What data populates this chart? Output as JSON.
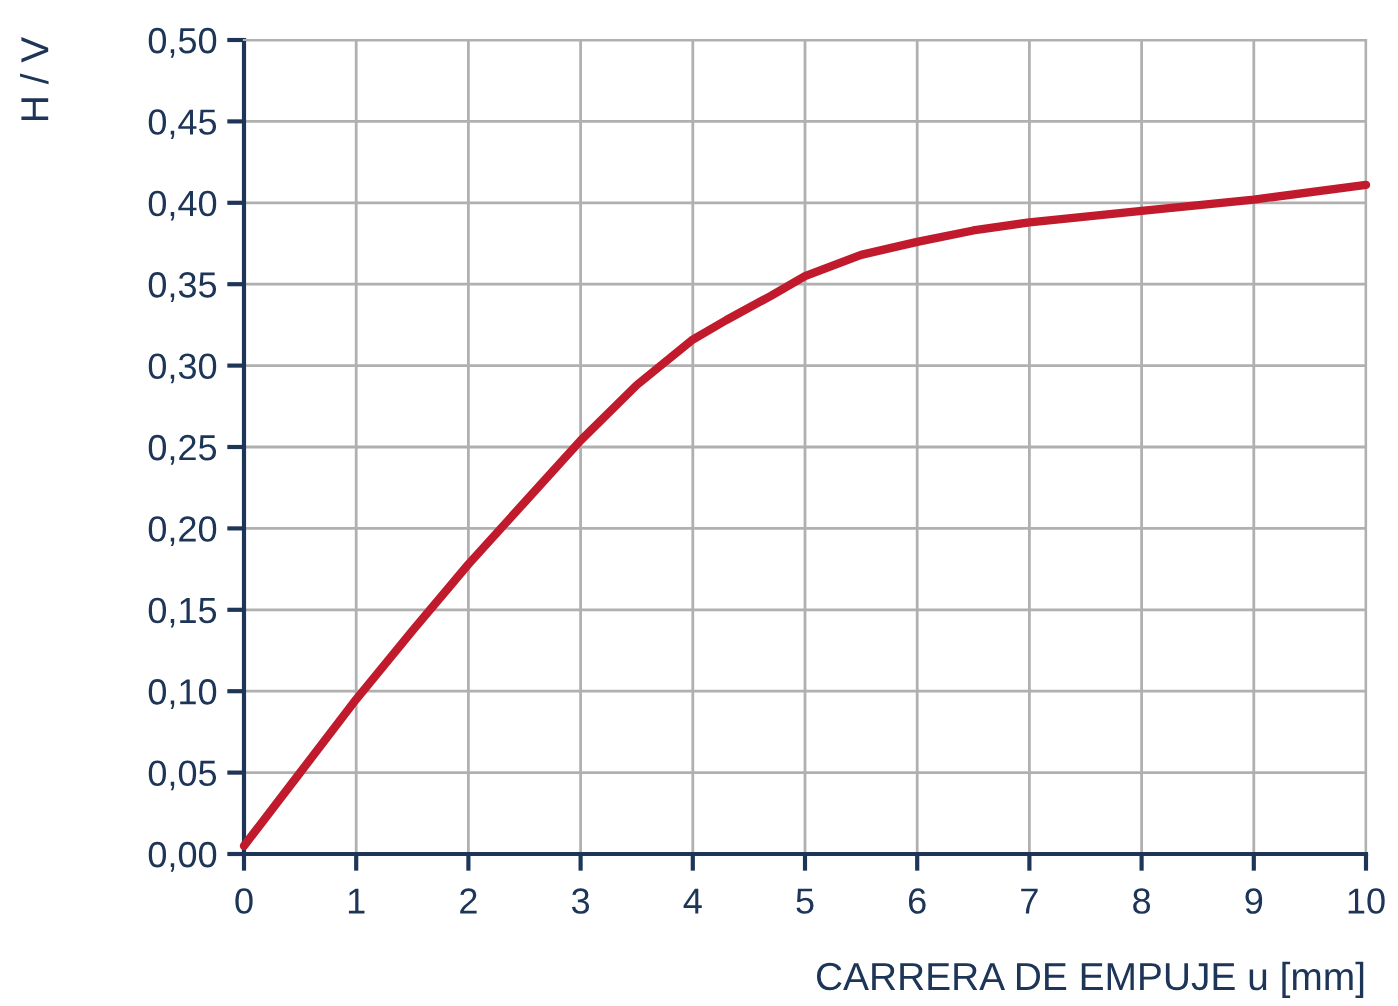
{
  "chart_data": {
    "type": "line",
    "xlabel": "CARRERA DE EMPUJE u [mm]",
    "ylabel": "H / V",
    "series": [
      {
        "color": "#c01a2c",
        "x": [
          0,
          0.5,
          1,
          1.5,
          2,
          2.5,
          3,
          3.5,
          4,
          4.3,
          4.7,
          5,
          5.5,
          6,
          6.5,
          7,
          8,
          9,
          10
        ],
        "values": [
          0.005,
          0.05,
          0.095,
          0.137,
          0.178,
          0.216,
          0.254,
          0.288,
          0.316,
          0.328,
          0.343,
          0.355,
          0.368,
          0.376,
          0.383,
          0.388,
          0.395,
          0.402,
          0.411
        ]
      }
    ],
    "xlim": [
      0,
      10
    ],
    "xticks": [
      0,
      1,
      2,
      3,
      4,
      5,
      6,
      7,
      8,
      9,
      10
    ],
    "ylim": [
      0,
      0.5
    ],
    "yticks": [
      {
        "value": 0,
        "label": "0,00"
      },
      {
        "value": 0.05,
        "label": "0,05"
      },
      {
        "value": 0.1,
        "label": "0,10"
      },
      {
        "value": 0.15,
        "label": "0,15"
      },
      {
        "value": 0.2,
        "label": "0,20"
      },
      {
        "value": 0.25,
        "label": "0,25"
      },
      {
        "value": 0.3,
        "label": "0,30"
      },
      {
        "value": 0.35,
        "label": "0,35"
      },
      {
        "value": 0.4,
        "label": "0,40"
      },
      {
        "value": 0.45,
        "label": "0,45"
      },
      {
        "value": 0.5,
        "label": "0,50"
      }
    ],
    "grid": true,
    "legend": false,
    "marker": "none",
    "line_style": "solid"
  }
}
